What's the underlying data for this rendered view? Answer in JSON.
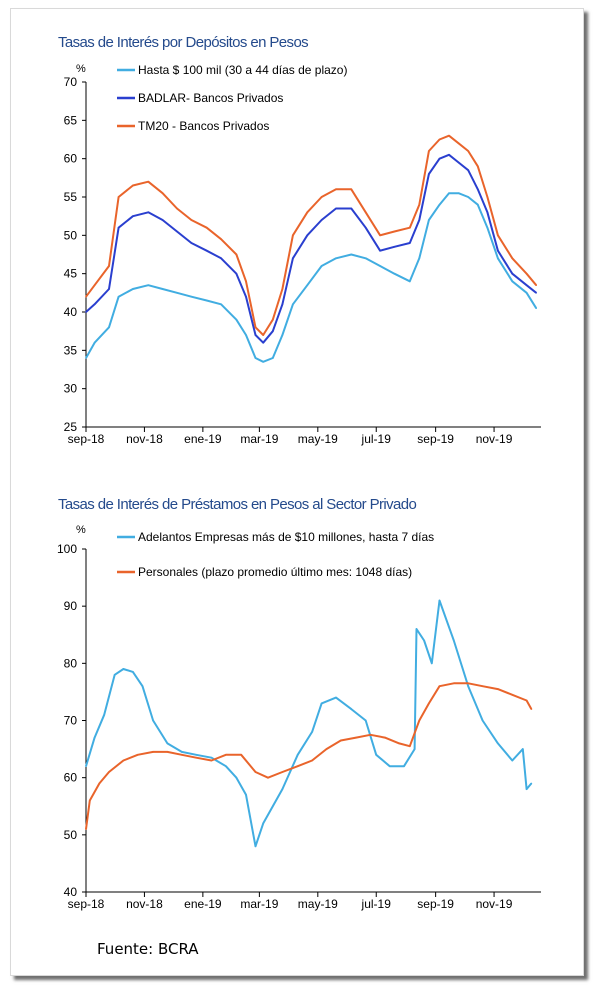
{
  "source": "Fuente: BCRA",
  "chart_data": [
    {
      "type": "line",
      "title": "Tasas de Interés por Depósitos en Pesos",
      "ylabel": "%",
      "ylim": [
        25,
        70
      ],
      "yticks": [
        25,
        30,
        35,
        40,
        45,
        50,
        55,
        60,
        65,
        70
      ],
      "xlim": [
        "2018-09-01",
        "2019-12-20"
      ],
      "xticks": [
        {
          "label": "sep-18",
          "date": "2018-09-01"
        },
        {
          "label": "nov-18",
          "date": "2018-11-01"
        },
        {
          "label": "ene-19",
          "date": "2019-01-01"
        },
        {
          "label": "mar-19",
          "date": "2019-03-01"
        },
        {
          "label": "may-19",
          "date": "2019-05-01"
        },
        {
          "label": "jul-19",
          "date": "2019-07-01"
        },
        {
          "label": "sep-19",
          "date": "2019-09-01"
        },
        {
          "label": "nov-19",
          "date": "2019-11-01"
        }
      ],
      "grid": false,
      "legend_position": "top-left",
      "series": [
        {
          "name": "Hasta $ 100 mil (30 a 44 días de plazo)",
          "color": "#41ade1",
          "x": [
            "2018-09-01",
            "2018-09-10",
            "2018-09-25",
            "2018-10-05",
            "2018-10-20",
            "2018-11-05",
            "2018-11-20",
            "2018-12-05",
            "2018-12-20",
            "2019-01-05",
            "2019-01-20",
            "2019-02-05",
            "2019-02-15",
            "2019-02-25",
            "2019-03-05",
            "2019-03-15",
            "2019-03-25",
            "2019-04-05",
            "2019-04-20",
            "2019-05-05",
            "2019-05-20",
            "2019-06-05",
            "2019-06-20",
            "2019-07-05",
            "2019-07-20",
            "2019-08-05",
            "2019-08-15",
            "2019-08-25",
            "2019-09-05",
            "2019-09-15",
            "2019-09-25",
            "2019-10-05",
            "2019-10-15",
            "2019-10-25",
            "2019-11-05",
            "2019-11-20",
            "2019-12-05",
            "2019-12-15"
          ],
          "y": [
            34,
            36,
            38,
            42,
            43,
            43.5,
            43,
            42.5,
            42,
            41.5,
            41,
            39,
            37,
            34,
            33.5,
            34,
            37,
            41,
            43.5,
            46,
            47,
            47.5,
            47,
            46,
            45,
            44,
            47,
            52,
            54,
            55.5,
            55.5,
            55,
            54,
            51,
            47,
            44,
            42.5,
            40.5
          ]
        },
        {
          "name": "BADLAR- Bancos Privados",
          "color": "#2a3fcf",
          "x": [
            "2018-09-01",
            "2018-09-10",
            "2018-09-25",
            "2018-10-05",
            "2018-10-20",
            "2018-11-05",
            "2018-11-20",
            "2018-12-05",
            "2018-12-20",
            "2019-01-05",
            "2019-01-20",
            "2019-02-05",
            "2019-02-15",
            "2019-02-25",
            "2019-03-05",
            "2019-03-15",
            "2019-03-25",
            "2019-04-05",
            "2019-04-20",
            "2019-05-05",
            "2019-05-20",
            "2019-06-05",
            "2019-06-20",
            "2019-07-05",
            "2019-07-20",
            "2019-08-05",
            "2019-08-15",
            "2019-08-25",
            "2019-09-05",
            "2019-09-15",
            "2019-09-25",
            "2019-10-05",
            "2019-10-15",
            "2019-10-25",
            "2019-11-05",
            "2019-11-20",
            "2019-12-05",
            "2019-12-15"
          ],
          "y": [
            40,
            41,
            43,
            51,
            52.5,
            53,
            52,
            50.5,
            49,
            48,
            47,
            45,
            42,
            37,
            36,
            37.5,
            41,
            47,
            50,
            52,
            53.5,
            53.5,
            51,
            48,
            48.5,
            49,
            52,
            58,
            60,
            60.5,
            59.5,
            58.5,
            56,
            53,
            48,
            45,
            43.5,
            42.5
          ]
        },
        {
          "name": "TM20 - Bancos Privados",
          "color": "#e9642b",
          "x": [
            "2018-09-01",
            "2018-09-10",
            "2018-09-25",
            "2018-10-05",
            "2018-10-20",
            "2018-11-05",
            "2018-11-20",
            "2018-12-05",
            "2018-12-20",
            "2019-01-05",
            "2019-01-20",
            "2019-02-05",
            "2019-02-15",
            "2019-02-25",
            "2019-03-05",
            "2019-03-15",
            "2019-03-25",
            "2019-04-05",
            "2019-04-20",
            "2019-05-05",
            "2019-05-20",
            "2019-06-05",
            "2019-06-20",
            "2019-07-05",
            "2019-07-20",
            "2019-08-05",
            "2019-08-15",
            "2019-08-25",
            "2019-09-05",
            "2019-09-15",
            "2019-09-25",
            "2019-10-05",
            "2019-10-15",
            "2019-10-25",
            "2019-11-05",
            "2019-11-20",
            "2019-12-05",
            "2019-12-15"
          ],
          "y": [
            42,
            43.5,
            46,
            55,
            56.5,
            57,
            55.5,
            53.5,
            52,
            51,
            49.5,
            47.5,
            44,
            38,
            37,
            39,
            43,
            50,
            53,
            55,
            56,
            56,
            53,
            50,
            50.5,
            51,
            54,
            61,
            62.5,
            63,
            62,
            61,
            59,
            55,
            50,
            47,
            45,
            43.5
          ]
        }
      ]
    },
    {
      "type": "line",
      "title": "Tasas de Interés de Préstamos en Pesos al Sector Privado",
      "ylabel": "%",
      "ylim": [
        40,
        100
      ],
      "yticks": [
        40,
        50,
        60,
        70,
        80,
        90,
        100
      ],
      "xlim": [
        "2018-09-01",
        "2019-12-20"
      ],
      "xticks": [
        {
          "label": "sep-18",
          "date": "2018-09-01"
        },
        {
          "label": "nov-18",
          "date": "2018-11-01"
        },
        {
          "label": "ene-19",
          "date": "2019-01-01"
        },
        {
          "label": "mar-19",
          "date": "2019-03-01"
        },
        {
          "label": "may-19",
          "date": "2019-05-01"
        },
        {
          "label": "jul-19",
          "date": "2019-07-01"
        },
        {
          "label": "sep-19",
          "date": "2019-09-01"
        },
        {
          "label": "nov-19",
          "date": "2019-11-01"
        }
      ],
      "grid": false,
      "legend_position": "top-left",
      "series": [
        {
          "name": "Adelantos Empresas más de $10 millones, hasta 7 días",
          "color": "#41ade1",
          "x": [
            "2018-09-01",
            "2018-09-10",
            "2018-09-20",
            "2018-10-01",
            "2018-10-10",
            "2018-10-20",
            "2018-10-30",
            "2018-11-10",
            "2018-11-25",
            "2018-12-10",
            "2018-12-25",
            "2019-01-10",
            "2019-01-25",
            "2019-02-05",
            "2019-02-15",
            "2019-02-25",
            "2019-03-05",
            "2019-03-15",
            "2019-03-25",
            "2019-04-10",
            "2019-04-25",
            "2019-05-05",
            "2019-05-20",
            "2019-06-05",
            "2019-06-20",
            "2019-07-01",
            "2019-07-15",
            "2019-07-30",
            "2019-08-10",
            "2019-08-12",
            "2019-08-20",
            "2019-08-28",
            "2019-09-05",
            "2019-09-20",
            "2019-10-05",
            "2019-10-20",
            "2019-11-05",
            "2019-11-20",
            "2019-12-01",
            "2019-12-05",
            "2019-12-10"
          ],
          "y": [
            62,
            67,
            71,
            78,
            79,
            78.5,
            76,
            70,
            66,
            64.5,
            64,
            63.5,
            62,
            60,
            57,
            48,
            52,
            55,
            58,
            64,
            68,
            73,
            74,
            72,
            70,
            64,
            62,
            62,
            65,
            86,
            84,
            80,
            91,
            84,
            76,
            70,
            66,
            63,
            65,
            58,
            59
          ]
        },
        {
          "name": "Personales (plazo promedio último mes: 1048 días)",
          "color": "#e9642b",
          "x": [
            "2018-09-01",
            "2018-09-05",
            "2018-09-15",
            "2018-09-25",
            "2018-10-10",
            "2018-10-25",
            "2018-11-10",
            "2018-11-25",
            "2018-12-10",
            "2018-12-25",
            "2019-01-10",
            "2019-01-25",
            "2019-02-10",
            "2019-02-25",
            "2019-03-10",
            "2019-03-25",
            "2019-04-10",
            "2019-04-25",
            "2019-05-10",
            "2019-05-25",
            "2019-06-10",
            "2019-06-25",
            "2019-07-10",
            "2019-07-25",
            "2019-08-05",
            "2019-08-15",
            "2019-08-25",
            "2019-09-05",
            "2019-09-20",
            "2019-10-05",
            "2019-10-20",
            "2019-11-05",
            "2019-11-20",
            "2019-12-05",
            "2019-12-10"
          ],
          "y": [
            51,
            56,
            59,
            61,
            63,
            64,
            64.5,
            64.5,
            64,
            63.5,
            63,
            64,
            64,
            61,
            60,
            61,
            62,
            63,
            65,
            66.5,
            67,
            67.5,
            67,
            66,
            65.5,
            70,
            73,
            76,
            76.5,
            76.5,
            76,
            75.5,
            74.5,
            73.5,
            72
          ]
        }
      ]
    }
  ]
}
